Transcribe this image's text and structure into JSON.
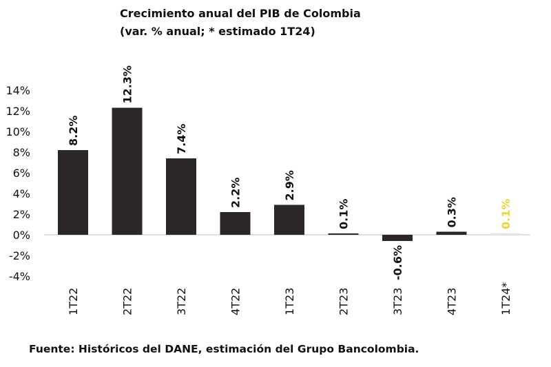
{
  "chart_data": {
    "type": "bar",
    "title": "Crecimiento anual del PIB de Colombia",
    "subtitle": "(var. % anual; * estimado 1T24)",
    "categories": [
      "1T22",
      "2T22",
      "3T22",
      "4T22",
      "1T23",
      "2T23",
      "3T23",
      "4T23",
      "1T24*"
    ],
    "values": [
      8.2,
      12.3,
      7.4,
      2.2,
      2.9,
      0.1,
      -0.6,
      0.3,
      0.1
    ],
    "data_labels": [
      "8.2%",
      "12.3%",
      "7.4%",
      "2.2%",
      "2.9%",
      "0.1%",
      "-0.6%",
      "0.3%",
      "0.1%"
    ],
    "y_ticks": [
      14,
      12,
      10,
      8,
      6,
      4,
      2,
      0,
      -2,
      -4
    ],
    "y_tick_labels": [
      "14%",
      "12%",
      "10%",
      "8%",
      "6%",
      "4%",
      "2%",
      "0%",
      "-2%",
      "-4%"
    ],
    "ylim": [
      -4,
      14
    ],
    "xlabel": "",
    "ylabel": "",
    "grid": false,
    "legend": "none",
    "colors": {
      "bar": "#2b2726",
      "estimate_label": "#f2d230",
      "text": "#111111",
      "zero_line": "#bfbfbf"
    },
    "highlight_index": 8
  },
  "source": "Fuente: Históricos del DANE, estimación del Grupo Bancolombia."
}
